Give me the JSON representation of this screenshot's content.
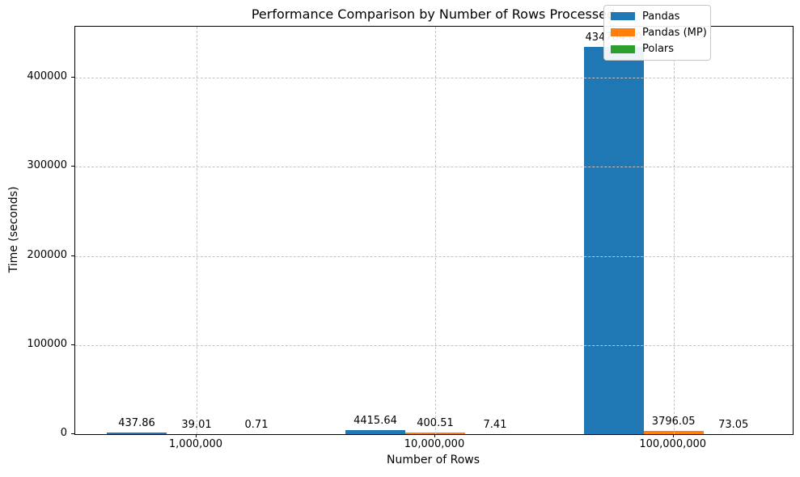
{
  "chart_data": {
    "type": "bar",
    "title": "Performance Comparison by Number of Rows Processed",
    "xlabel": "Number of Rows",
    "ylabel": "Time (seconds)",
    "categories": [
      "1,000,000",
      "10,000,000",
      "100,000,000"
    ],
    "series": [
      {
        "name": "Pandas",
        "color": "#1f77b4",
        "values": [
          437.86,
          4415.64,
          434764.0
        ],
        "labels": [
          "437.86",
          "4415.64",
          "434764.00"
        ]
      },
      {
        "name": "Pandas (MP)",
        "color": "#ff7f0e",
        "values": [
          39.01,
          400.51,
          3796.05
        ],
        "labels": [
          "39.01",
          "400.51",
          "3796.05"
        ]
      },
      {
        "name": "Polars",
        "color": "#2ca02c",
        "values": [
          0.71,
          7.41,
          73.05
        ],
        "labels": [
          "0.71",
          "7.41",
          "73.05"
        ]
      }
    ],
    "yticks": [
      0,
      100000,
      200000,
      300000,
      400000
    ],
    "ytick_labels": [
      "0",
      "100000",
      "200000",
      "300000",
      "400000"
    ],
    "ylim": [
      0,
      456500
    ],
    "grid": true,
    "grid_style": "dashed",
    "legend_position": "upper right",
    "axis_color": "#000000",
    "background_color": "#ffffff"
  }
}
